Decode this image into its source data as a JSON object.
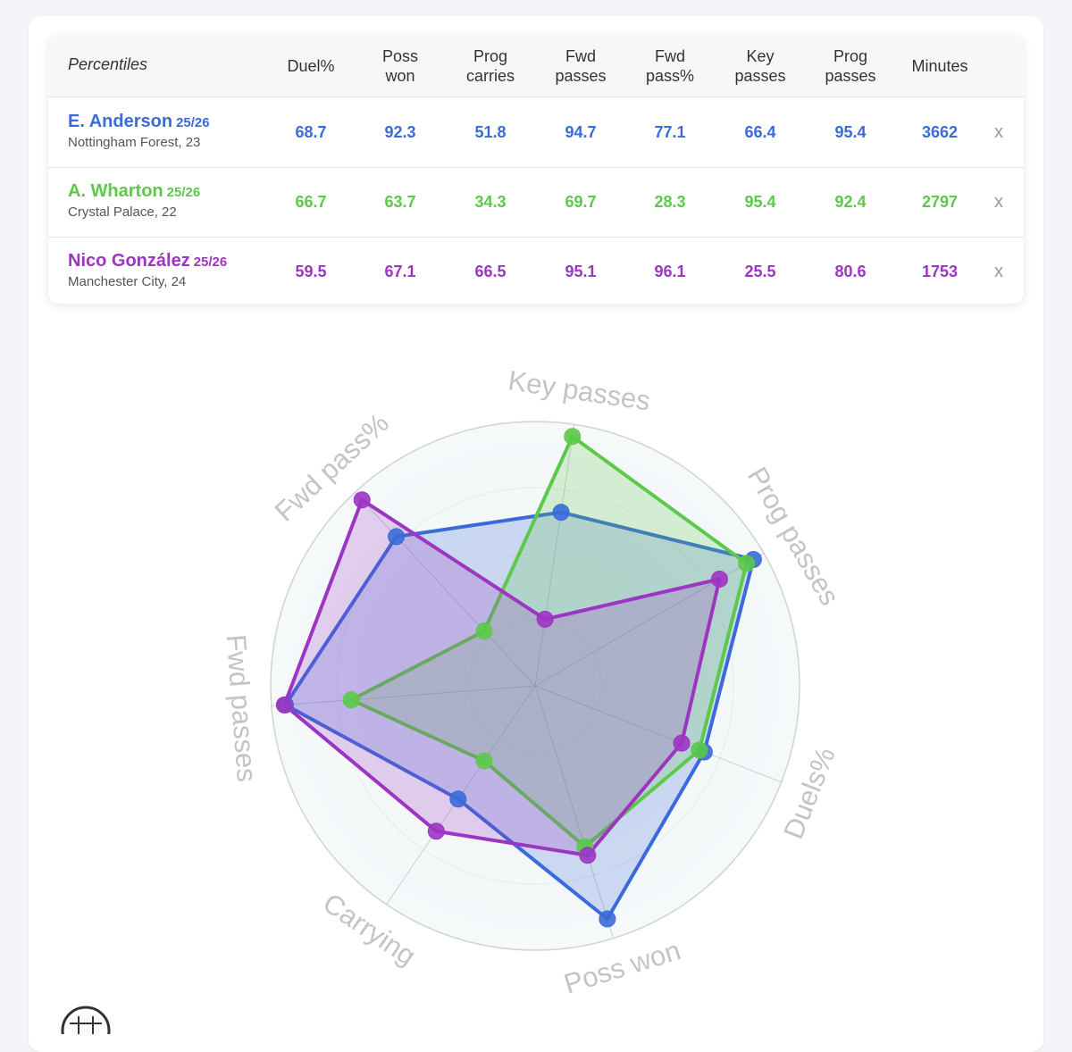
{
  "table": {
    "header_label": "Percentiles",
    "columns": [
      "Duel%",
      "Poss\nwon",
      "Prog\ncarries",
      "Fwd\npasses",
      "Fwd\npass%",
      "Key\npasses",
      "Prog\npasses",
      "Minutes"
    ],
    "remove_label": "x",
    "rows": [
      {
        "name": "E. Anderson",
        "season": "25/26",
        "club": "Nottingham Forest, 23",
        "color": "#3a6bd8",
        "values": [
          "68.7",
          "92.3",
          "51.8",
          "94.7",
          "77.1",
          "66.4",
          "95.4",
          "3662"
        ]
      },
      {
        "name": "A. Wharton",
        "season": "25/26",
        "club": "Crystal Palace, 22",
        "color": "#5cc94a",
        "values": [
          "66.7",
          "63.7",
          "34.3",
          "69.7",
          "28.3",
          "95.4",
          "92.4",
          "2797"
        ]
      },
      {
        "name": "Nico González",
        "season": "25/26",
        "club": "Manchester City, 24",
        "color": "#9c35c2",
        "values": [
          "59.5",
          "67.1",
          "66.5",
          "95.1",
          "96.1",
          "25.5",
          "80.6",
          "1753"
        ]
      }
    ]
  },
  "chart_data": {
    "type": "radar",
    "axes": [
      "Key passes",
      "Prog passes",
      "Duels%",
      "Poss won",
      "Carrying",
      "Fwd passes",
      "Fwd pass%"
    ],
    "range": [
      0,
      100
    ],
    "series": [
      {
        "name": "E. Anderson",
        "color": "#3a6bd8",
        "values": [
          66.4,
          95.4,
          68.7,
          92.3,
          51.8,
          94.7,
          77.1
        ]
      },
      {
        "name": "A. Wharton",
        "color": "#5cc94a",
        "values": [
          95.4,
          92.4,
          66.7,
          63.7,
          34.3,
          69.7,
          28.3
        ]
      },
      {
        "name": "Nico González",
        "color": "#9c35c2",
        "values": [
          25.5,
          80.6,
          59.5,
          67.1,
          66.5,
          95.1,
          96.1
        ]
      }
    ]
  }
}
